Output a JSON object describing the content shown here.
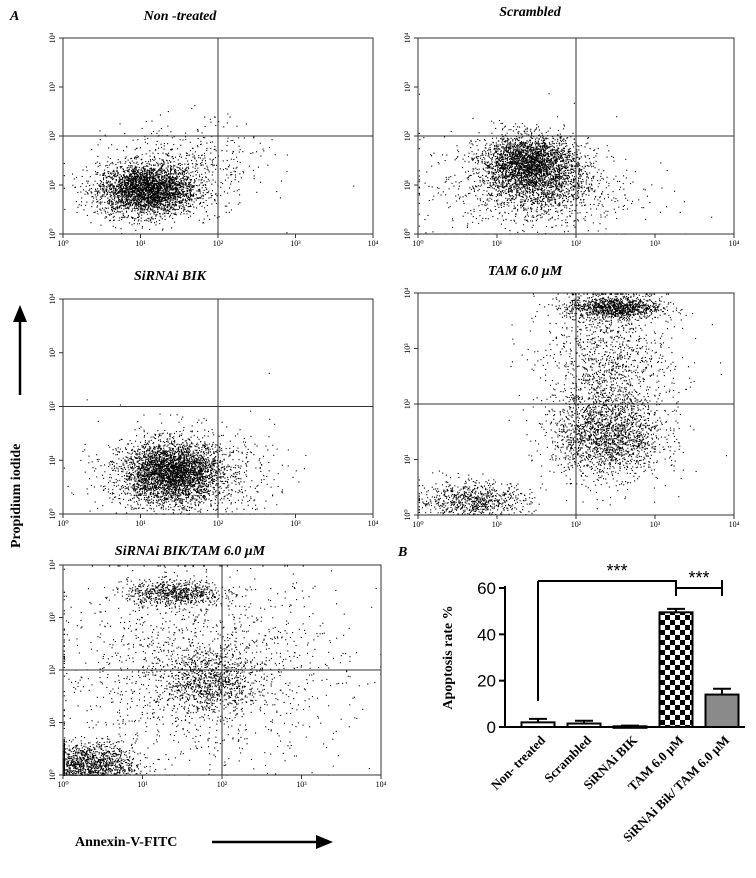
{
  "figure": {
    "panel_a_label": "A",
    "panel_b_label": "B",
    "y_axis_label": "Propidium iodide",
    "x_axis_label": "Annexin-V-FITC"
  },
  "colors": {
    "ink": "#000000",
    "tam_bar": "#ffffff",
    "combo_bar": "#8a8a8a"
  },
  "chart_data": [
    {
      "type": "scatter",
      "title": "Non -treated",
      "x_scale": "log",
      "y_scale": "log",
      "xlim": [
        1,
        10000
      ],
      "ylim": [
        1,
        10000
      ],
      "x_ticks": [
        "10⁰",
        "10¹",
        "10²",
        "10³",
        "10⁴"
      ],
      "y_ticks": [
        "10⁰",
        "10¹",
        "10²",
        "10³",
        "10⁴"
      ],
      "quadrant_gate": {
        "x": 100,
        "y": 100
      },
      "populations": [
        {
          "center_x": 12,
          "center_y": 8,
          "spread_log_x": 0.32,
          "spread_log_y": 0.26,
          "points": 3200
        },
        {
          "center_x": 40,
          "center_y": 25,
          "spread_log_x": 0.5,
          "spread_log_y": 0.45,
          "points": 450
        }
      ]
    },
    {
      "type": "scatter",
      "title": "Scrambled",
      "x_scale": "log",
      "y_scale": "log",
      "xlim": [
        1,
        10000
      ],
      "ylim": [
        1,
        10000
      ],
      "x_ticks": [
        "10⁰",
        "10¹",
        "10²",
        "10³",
        "10⁴"
      ],
      "y_ticks": [
        "10⁰",
        "10¹",
        "10²",
        "10³",
        "10⁴"
      ],
      "quadrant_gate": {
        "x": 100,
        "y": 100
      },
      "populations": [
        {
          "center_x": 25,
          "center_y": 30,
          "spread_log_x": 0.3,
          "spread_log_y": 0.28,
          "points": 2400
        },
        {
          "center_x": 35,
          "center_y": 10,
          "spread_log_x": 0.35,
          "spread_log_y": 0.3,
          "points": 900
        },
        {
          "center_x": 25,
          "center_y": 8,
          "spread_log_x": 0.7,
          "spread_log_y": 0.55,
          "points": 700
        }
      ]
    },
    {
      "type": "scatter",
      "title": "SiRNAi BIK",
      "x_scale": "log",
      "y_scale": "log",
      "xlim": [
        1,
        10000
      ],
      "ylim": [
        1,
        10000
      ],
      "x_ticks": [
        "10⁰",
        "10¹",
        "10²",
        "10³",
        "10⁴"
      ],
      "y_ticks": [
        "10⁰",
        "10¹",
        "10²",
        "10³",
        "10⁴"
      ],
      "quadrant_gate": {
        "x": 100,
        "y": 100
      },
      "populations": [
        {
          "center_x": 25,
          "center_y": 6,
          "spread_log_x": 0.32,
          "spread_log_y": 0.28,
          "points": 3200
        },
        {
          "center_x": 40,
          "center_y": 5,
          "spread_log_x": 0.55,
          "spread_log_y": 0.45,
          "points": 800
        }
      ]
    },
    {
      "type": "scatter",
      "title": "TAM  6.0 μM",
      "x_scale": "log",
      "y_scale": "log",
      "xlim": [
        1,
        10000
      ],
      "ylim": [
        1,
        10000
      ],
      "x_ticks": [
        "10⁰",
        "10¹",
        "10²",
        "10³",
        "10⁴"
      ],
      "y_ticks": [
        "10⁰",
        "10¹",
        "10²",
        "10³",
        "10⁴"
      ],
      "quadrant_gate": {
        "x": 100,
        "y": 100
      },
      "populations": [
        {
          "center_x": 300,
          "center_y": 5500,
          "spread_log_x": 0.3,
          "spread_log_y": 0.1,
          "points": 1100
        },
        {
          "center_x": 250,
          "center_y": 25,
          "spread_log_x": 0.35,
          "spread_log_y": 0.35,
          "points": 1500
        },
        {
          "center_x": 5,
          "center_y": 1.8,
          "spread_log_x": 0.35,
          "spread_log_y": 0.18,
          "points": 800
        },
        {
          "center_x": 250,
          "center_y": 300,
          "spread_log_x": 0.4,
          "spread_log_y": 0.8,
          "points": 1500
        }
      ]
    },
    {
      "type": "scatter",
      "title": "SiRNAi BIK/TAM 6.0 μM",
      "x_scale": "log",
      "y_scale": "log",
      "xlim": [
        1,
        10000
      ],
      "ylim": [
        1,
        10000
      ],
      "x_ticks": [
        "10⁰",
        "10¹",
        "10²",
        "10³",
        "10⁴"
      ],
      "y_ticks": [
        "10⁰",
        "10¹",
        "10²",
        "10³",
        "10⁴"
      ],
      "quadrant_gate": {
        "x": 100,
        "y": 100
      },
      "populations": [
        {
          "center_x": 2,
          "center_y": 1.5,
          "spread_log_x": 0.3,
          "spread_log_y": 0.22,
          "points": 1500
        },
        {
          "center_x": 25,
          "center_y": 3000,
          "spread_log_x": 0.3,
          "spread_log_y": 0.12,
          "points": 700
        },
        {
          "center_x": 70,
          "center_y": 60,
          "spread_log_x": 0.3,
          "spread_log_y": 0.3,
          "points": 800
        },
        {
          "center_x": 50,
          "center_y": 100,
          "spread_log_x": 0.9,
          "spread_log_y": 0.9,
          "points": 1500
        }
      ]
    },
    {
      "type": "bar",
      "categories": [
        "Non- treated",
        "Scrambled",
        "SiRNAi BIK",
        "TAM 6.0 μM",
        "SiRNAi Bik/ TAM 6.0 μM"
      ],
      "values": [
        2,
        1.5,
        0.3,
        49.5,
        14
      ],
      "errors": [
        1.5,
        1.2,
        0.3,
        1.5,
        2.5
      ],
      "fills": [
        "solid-white",
        "solid-white",
        "solid-white",
        "checker",
        "solid-gray"
      ],
      "ylabel": "Apoptosis rate %",
      "ylim": [
        0,
        60
      ],
      "y_ticks": [
        0,
        20,
        40,
        60
      ],
      "significance": [
        {
          "from": 0,
          "to": 3,
          "label": "***"
        },
        {
          "from": 3,
          "to": 4,
          "label": "***"
        }
      ]
    }
  ]
}
